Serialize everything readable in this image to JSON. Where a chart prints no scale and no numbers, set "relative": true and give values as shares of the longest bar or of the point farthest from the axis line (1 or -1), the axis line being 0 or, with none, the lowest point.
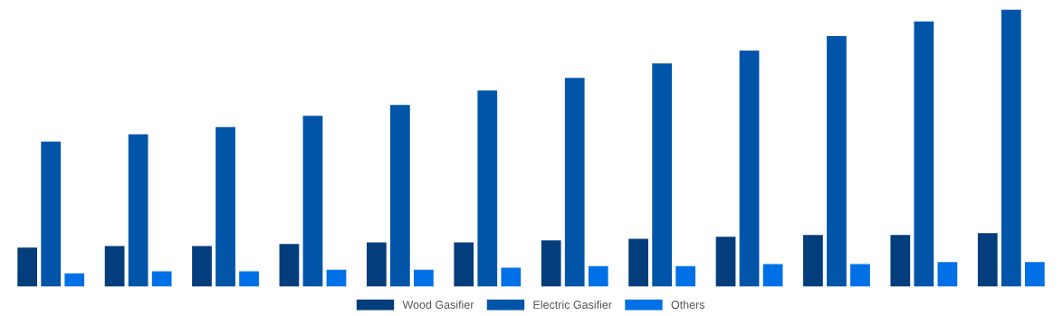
{
  "chart_data": {
    "type": "bar",
    "relative": true,
    "categories": [
      null,
      null,
      null,
      null,
      null,
      null,
      null,
      null,
      null,
      null,
      null,
      null
    ],
    "series": [
      {
        "name": "Wood Gasifier",
        "color": "#033d7c",
        "values": [
          0.144,
          0.15,
          0.15,
          0.157,
          0.163,
          0.163,
          0.17,
          0.176,
          0.183,
          0.19,
          0.19,
          0.196
        ]
      },
      {
        "name": "Electric Gasifier",
        "color": "#0055a8",
        "values": [
          0.526,
          0.552,
          0.578,
          0.618,
          0.657,
          0.709,
          0.755,
          0.807,
          0.853,
          0.905,
          0.958,
          1
        ]
      },
      {
        "name": "Others",
        "color": "#0070e6",
        "values": [
          0.052,
          0.059,
          0.059,
          0.065,
          0.065,
          0.072,
          0.078,
          0.078,
          0.085,
          0.085,
          0.092,
          0.092
        ]
      }
    ],
    "legend": "bottom",
    "grid": false
  }
}
